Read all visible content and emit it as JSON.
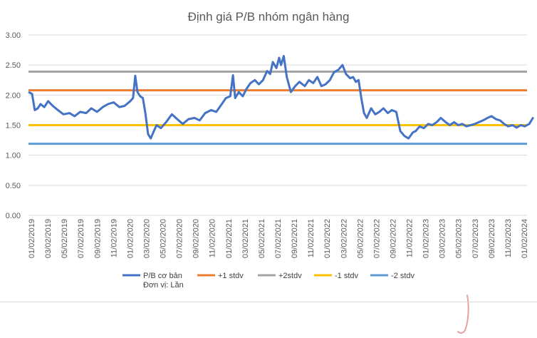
{
  "chart_data": {
    "type": "line",
    "title": "Định giá P/B nhóm ngân hàng",
    "xlabel": "",
    "ylabel": "",
    "ylim": [
      0,
      3
    ],
    "y_ticks": [
      "0.00",
      "0.50",
      "1.00",
      "1.50",
      "2.00",
      "2.50",
      "3.00"
    ],
    "x_tick_labels": [
      "01/02/2019",
      "03/02/2019",
      "05/02/2019",
      "07/02/2019",
      "09/02/2019",
      "11/02/2019",
      "01/02/2020",
      "03/02/2020",
      "05/02/2020",
      "07/02/2020",
      "09/02/2020",
      "11/02/2020",
      "01/02/2021",
      "03/02/2021",
      "05/02/2021",
      "07/02/2021",
      "09/02/2021",
      "11/02/2021",
      "01/02/2022",
      "03/02/2022",
      "05/02/2022",
      "07/02/2022",
      "09/02/2022",
      "11/02/2022",
      "01/02/2023",
      "03/02/2023",
      "05/02/2023",
      "07/02/2023",
      "09/02/2023",
      "11/02/2023",
      "01/02/2024"
    ],
    "grid": true,
    "legend_position": "bottom",
    "series": [
      {
        "name": "P/B cơ bản",
        "color": "#4472c4",
        "x": [
          "2019-01-02",
          "2019-01-15",
          "2019-01-25",
          "2019-02-05",
          "2019-02-15",
          "2019-03-01",
          "2019-03-15",
          "2019-04-01",
          "2019-04-20",
          "2019-05-10",
          "2019-06-01",
          "2019-06-20",
          "2019-07-10",
          "2019-08-01",
          "2019-08-20",
          "2019-09-10",
          "2019-10-01",
          "2019-10-20",
          "2019-11-10",
          "2019-12-01",
          "2019-12-20",
          "2020-01-10",
          "2020-01-20",
          "2020-01-28",
          "2020-02-05",
          "2020-02-15",
          "2020-02-25",
          "2020-03-05",
          "2020-03-15",
          "2020-03-25",
          "2020-04-05",
          "2020-04-15",
          "2020-05-01",
          "2020-05-20",
          "2020-06-10",
          "2020-06-30",
          "2020-07-20",
          "2020-08-10",
          "2020-09-01",
          "2020-09-20",
          "2020-10-10",
          "2020-11-01",
          "2020-11-20",
          "2020-12-10",
          "2020-12-25",
          "2021-01-10",
          "2021-01-20",
          "2021-01-28",
          "2021-02-10",
          "2021-02-25",
          "2021-03-10",
          "2021-03-25",
          "2021-04-10",
          "2021-04-25",
          "2021-05-10",
          "2021-05-25",
          "2021-06-05",
          "2021-06-15",
          "2021-06-28",
          "2021-07-08",
          "2021-07-15",
          "2021-07-25",
          "2021-08-05",
          "2021-08-20",
          "2021-09-05",
          "2021-09-20",
          "2021-10-10",
          "2021-10-25",
          "2021-11-10",
          "2021-11-25",
          "2021-12-10",
          "2021-12-25",
          "2022-01-10",
          "2022-01-25",
          "2022-02-10",
          "2022-02-25",
          "2022-03-10",
          "2022-03-25",
          "2022-04-05",
          "2022-04-15",
          "2022-04-25",
          "2022-05-05",
          "2022-05-15",
          "2022-05-25",
          "2022-06-10",
          "2022-06-25",
          "2022-07-10",
          "2022-07-25",
          "2022-08-10",
          "2022-08-25",
          "2022-09-10",
          "2022-09-25",
          "2022-10-10",
          "2022-10-25",
          "2022-11-10",
          "2022-11-20",
          "2022-12-05",
          "2022-12-20",
          "2023-01-05",
          "2023-01-20",
          "2023-02-05",
          "2023-02-20",
          "2023-03-10",
          "2023-03-25",
          "2023-04-10",
          "2023-04-25",
          "2023-05-10",
          "2023-05-25",
          "2023-06-10",
          "2023-06-25",
          "2023-07-10",
          "2023-07-25",
          "2023-08-10",
          "2023-08-25",
          "2023-09-10",
          "2023-09-25",
          "2023-10-10",
          "2023-10-25",
          "2023-11-10",
          "2023-11-25",
          "2023-12-10",
          "2023-12-25",
          "2024-01-10",
          "2024-01-25"
        ],
        "y": [
          2.05,
          2.02,
          1.75,
          1.78,
          1.85,
          1.8,
          1.9,
          1.82,
          1.75,
          1.68,
          1.7,
          1.65,
          1.72,
          1.7,
          1.78,
          1.72,
          1.8,
          1.85,
          1.88,
          1.8,
          1.82,
          1.9,
          1.95,
          2.32,
          2.05,
          1.98,
          1.95,
          1.7,
          1.35,
          1.28,
          1.4,
          1.5,
          1.45,
          1.55,
          1.68,
          1.6,
          1.52,
          1.6,
          1.62,
          1.58,
          1.7,
          1.75,
          1.72,
          1.85,
          1.95,
          1.98,
          2.33,
          1.95,
          2.05,
          1.98,
          2.1,
          2.2,
          2.25,
          2.18,
          2.25,
          2.4,
          2.35,
          2.55,
          2.45,
          2.62,
          2.5,
          2.65,
          2.3,
          2.05,
          2.15,
          2.22,
          2.15,
          2.25,
          2.2,
          2.3,
          2.15,
          2.18,
          2.25,
          2.38,
          2.42,
          2.5,
          2.35,
          2.28,
          2.3,
          2.22,
          2.25,
          1.95,
          1.7,
          1.62,
          1.78,
          1.68,
          1.72,
          1.78,
          1.7,
          1.75,
          1.72,
          1.4,
          1.32,
          1.28,
          1.38,
          1.4,
          1.48,
          1.45,
          1.52,
          1.5,
          1.55,
          1.62,
          1.55,
          1.5,
          1.55,
          1.5,
          1.52,
          1.48,
          1.5,
          1.52,
          1.55,
          1.58,
          1.62,
          1.65,
          1.6,
          1.58,
          1.52,
          1.48,
          1.5,
          1.46,
          1.5,
          1.48,
          1.52,
          1.63
        ]
      },
      {
        "name": "+1 stdv",
        "color": "#ed7d31",
        "value": 2.08
      },
      {
        "name": "+2stdv",
        "color": "#a5a5a5",
        "value": 2.39
      },
      {
        "name": "-1 stdv",
        "color": "#ffc000",
        "value": 1.5
      },
      {
        "name": "-2 stdv",
        "color": "#5b9bd5",
        "value": 1.19
      }
    ],
    "legend_extra_label": "Đơn vị: Lần"
  },
  "colors": {
    "grid": "#d9d9d9",
    "text": "#595959",
    "annotation_stroke": "#e8a0a0"
  }
}
